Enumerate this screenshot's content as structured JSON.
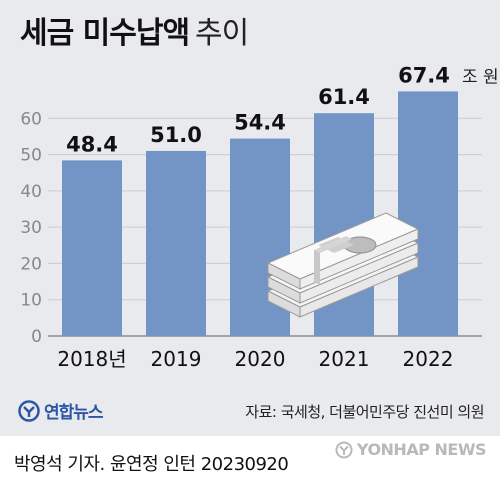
{
  "header": {
    "title": "세금 미수납액",
    "subtitle": "추이"
  },
  "chart_data": {
    "type": "bar",
    "categories": [
      "2018년",
      "2019",
      "2020",
      "2021",
      "2022"
    ],
    "values": [
      48.4,
      51.0,
      54.4,
      61.4,
      67.4
    ],
    "value_labels": [
      "48.4",
      "51.0",
      "54.4",
      "61.4",
      "67.4"
    ],
    "last_value_unit": "조 원",
    "yticks": [
      "0",
      "10",
      "20",
      "30",
      "40",
      "50",
      "60"
    ],
    "ylim": [
      0,
      70
    ],
    "grid": true,
    "bar_color": "#7395c6"
  },
  "footer": {
    "logo_text": "연합뉴스",
    "source": "자료: 국세청, 더불어민주당 진선미 의원",
    "credit": "박영석 기자.  윤연정 인턴  20230920",
    "watermark": "YONHAP NEWS"
  },
  "icons": {
    "illustration": "money-stack-icon",
    "logo": "yonhap-logo-icon"
  }
}
